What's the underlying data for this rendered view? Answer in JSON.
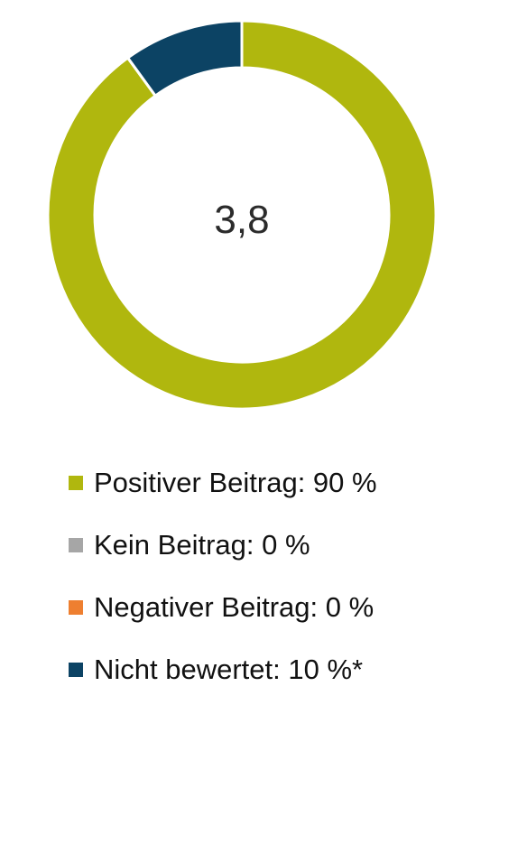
{
  "chart_data": {
    "type": "pie",
    "center_label": "3,8",
    "slices": [
      {
        "label": "Positiver Beitrag",
        "value": 90,
        "legend_text": "Positiver Beitrag: 90 %",
        "color": "#b0b70e"
      },
      {
        "label": "Kein Beitrag",
        "value": 0,
        "legend_text": "Kein Beitrag: 0 %",
        "color": "#a6a6a6"
      },
      {
        "label": "Negativer Beitrag",
        "value": 0,
        "legend_text": "Negativer Beitrag: 0 %",
        "color": "#ee7f30"
      },
      {
        "label": "Nicht bewertet",
        "value": 10,
        "legend_text": "Nicht bewertet: 10 %*",
        "color": "#0c4364"
      }
    ],
    "legend_position": "bottom",
    "grid": false
  }
}
